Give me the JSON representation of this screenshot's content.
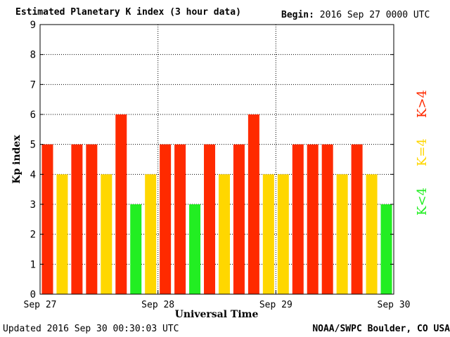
{
  "header": {
    "title": "Estimated Planetary K index (3 hour data)",
    "begin_label": "Begin:",
    "begin_value": "2016 Sep 27 0000 UTC"
  },
  "footer": {
    "updated": "Updated 2016 Sep 30 00:30:03 UTC",
    "credit": "NOAA/SWPC Boulder, CO USA"
  },
  "legend": [
    {
      "label": "K<4",
      "color": "#22ee22"
    },
    {
      "label": "K=4",
      "color": "#ffd700"
    },
    {
      "label": "K>4",
      "color": "#ff2a00"
    }
  ],
  "chart_data": {
    "type": "bar",
    "title": "Estimated Planetary K index (3 hour data)",
    "xlabel": "Universal Time",
    "ylabel": "Kp index",
    "ylim": [
      0,
      9
    ],
    "yticks": [
      0,
      1,
      2,
      3,
      4,
      5,
      6,
      7,
      8,
      9
    ],
    "day_labels": [
      "Sep 27",
      "Sep 28",
      "Sep 29",
      "Sep 30"
    ],
    "grid": true,
    "values": [
      5,
      4,
      5,
      5,
      4,
      6,
      3,
      4,
      5,
      5,
      3,
      5,
      4,
      5,
      6,
      4,
      4,
      5,
      5,
      5,
      4,
      5,
      4,
      3
    ],
    "colors": {
      "low": "#22ee22",
      "mid": "#ffd700",
      "high": "#ff2a00"
    }
  }
}
